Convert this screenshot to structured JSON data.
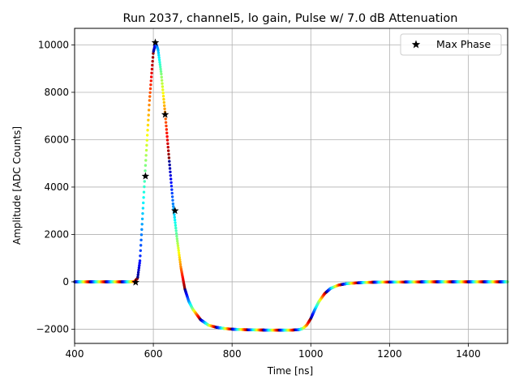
{
  "chart_data": {
    "type": "scatter",
    "title": "Run 2037, channel5, lo gain, Pulse w/ 7.0 dB Attenuation",
    "xlabel": "Time [ns]",
    "ylabel": "Amplitude [ADC Counts]",
    "xlim": [
      400,
      1500
    ],
    "ylim": [
      -2600,
      10700
    ],
    "xticks": [
      400,
      600,
      800,
      1000,
      1200,
      1400
    ],
    "xtick_labels": [
      "400",
      "600",
      "800",
      "1000",
      "1200",
      "1400"
    ],
    "yticks": [
      -2000,
      0,
      2000,
      4000,
      6000,
      8000,
      10000
    ],
    "ytick_labels": [
      "−2000",
      "0",
      "2000",
      "4000",
      "6000",
      "8000",
      "10000"
    ],
    "grid": true,
    "legend": {
      "position": "top-right",
      "entries": [
        "Max Phase"
      ]
    },
    "colormap": "jet",
    "pulse_shape": {
      "t": [
        400,
        540,
        552,
        560,
        566,
        572,
        580,
        590,
        600,
        606,
        612,
        620,
        630,
        640,
        650,
        660,
        670,
        680,
        690,
        700,
        720,
        740,
        760,
        780,
        800,
        850,
        900,
        950,
        970,
        980,
        990,
        1000,
        1010,
        1020,
        1035,
        1050,
        1070,
        1090,
        1120,
        1150,
        1200,
        1300,
        1500
      ],
      "amplitude": [
        0,
        0,
        10,
        150,
        900,
        2600,
        4900,
        7600,
        9700,
        10080,
        9800,
        8800,
        7100,
        5200,
        3300,
        1850,
        600,
        -300,
        -820,
        -1150,
        -1600,
        -1830,
        -1920,
        -1970,
        -2000,
        -2030,
        -2040,
        -2040,
        -2020,
        -1970,
        -1820,
        -1550,
        -1180,
        -850,
        -500,
        -280,
        -140,
        -80,
        -40,
        -20,
        -10,
        0,
        0
      ]
    },
    "series": [
      {
        "name": "Max Phase",
        "marker": "star",
        "color": "#000000",
        "x": [
          555,
          580,
          605,
          630,
          655
        ],
        "y": [
          -20,
          4460,
          10100,
          7060,
          3000
        ]
      }
    ]
  }
}
